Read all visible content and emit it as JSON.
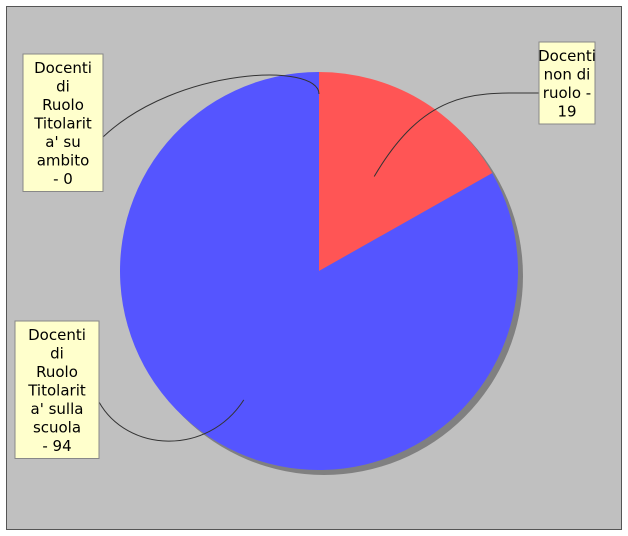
{
  "chart_data": {
    "type": "pie",
    "background": "#c0c0c0",
    "shadow_color": "#808080",
    "start_angle_deg": 90,
    "direction": "clockwise",
    "slices": [
      {
        "name": "Docenti non di ruolo",
        "value": 19,
        "color": "#ff5555",
        "label_lines": [
          "Docenti",
          "non di",
          "ruolo -",
          "19"
        ]
      },
      {
        "name": "Docenti di Ruolo Titolarita' sulla scuola",
        "value": 94,
        "color": "#5555ff",
        "label_lines": [
          "Docenti",
          "di",
          "Ruolo",
          "Titolarit",
          "a' sulla",
          "scuola",
          "- 94"
        ]
      },
      {
        "name": "Docenti di Ruolo Titolarita' su ambito",
        "value": 0,
        "color": "#55ff55",
        "label_lines": [
          "Docenti",
          "di",
          "Ruolo",
          "Titolarit",
          "a' su",
          "ambito",
          "- 0"
        ]
      }
    ]
  }
}
